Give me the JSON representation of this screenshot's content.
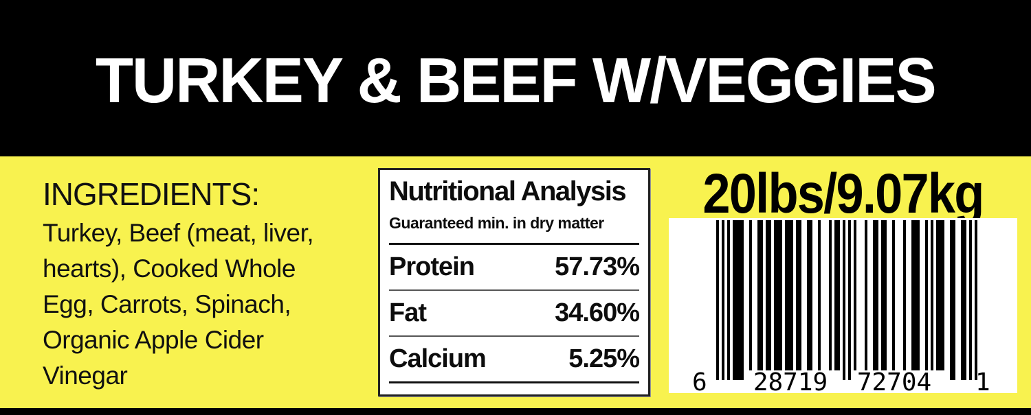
{
  "product": {
    "title": "TURKEY & BEEF W/VEGGIES"
  },
  "ingredients": {
    "label": "INGREDIENTS:",
    "lines": [
      "Turkey, Beef (meat, liver,",
      "hearts), Cooked Whole",
      "Egg, Carrots, Spinach,",
      "Organic Apple Cider",
      "Vinegar"
    ],
    "full_text": "INGREDIENTS: Turkey, Beef (meat, liver, hearts), Cooked Whole Egg, Carrots, Spinach, Organic Apple Cider Vinegar"
  },
  "nutrition": {
    "title": "Nutritional Analysis",
    "subtitle": "Guaranteed min. in dry matter",
    "rows": [
      {
        "label": "Protein",
        "value": "57.73%"
      },
      {
        "label": "Fat",
        "value": "34.60%"
      },
      {
        "label": "Calcium",
        "value": "5.25%"
      }
    ]
  },
  "weight": {
    "display": "20lbs/9.07kg"
  },
  "barcode": {
    "digits": "628719727041",
    "display_groups": [
      "6",
      "28719",
      "72704",
      "1"
    ]
  },
  "colors": {
    "background_yellow": "#f8f24f",
    "header_black": "#000000",
    "title_white": "#ffffff",
    "box_white": "#ffffff",
    "text_black": "#111111"
  }
}
